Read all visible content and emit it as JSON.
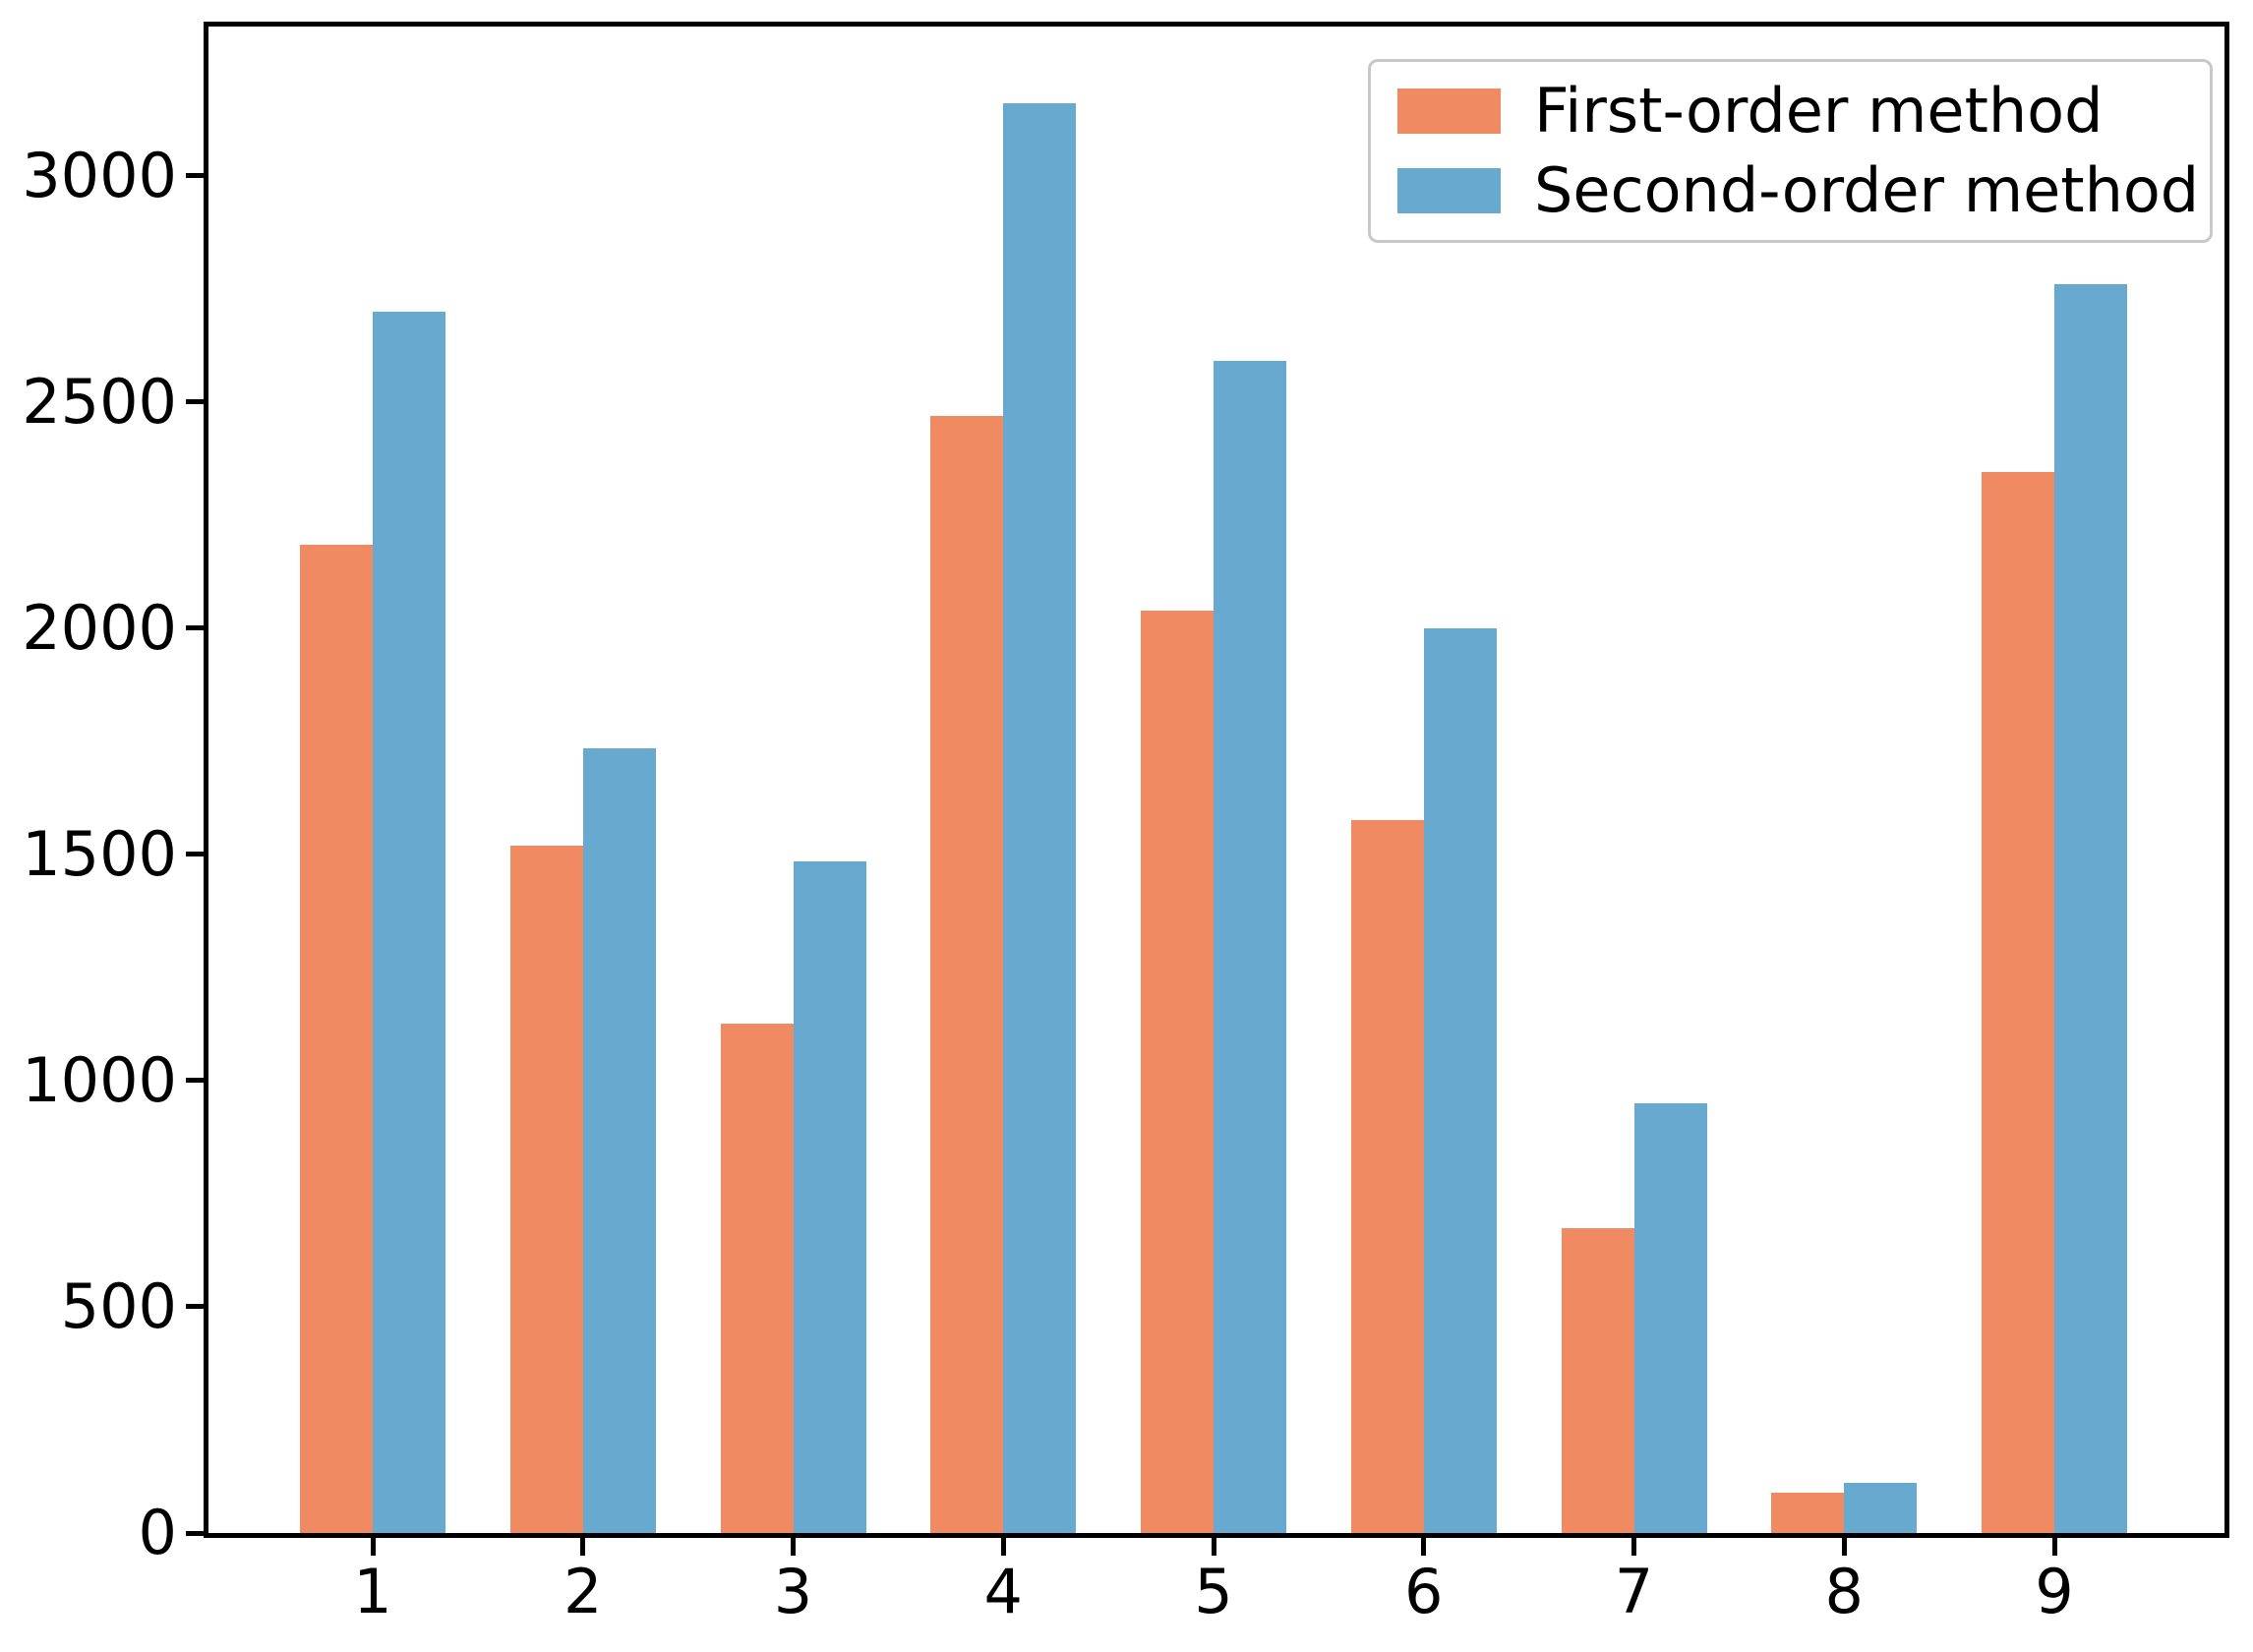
{
  "chart_data": {
    "type": "bar",
    "title": "",
    "xlabel": "",
    "ylabel": "",
    "categories": [
      "1",
      "2",
      "3",
      "4",
      "5",
      "6",
      "7",
      "8",
      "9"
    ],
    "series": [
      {
        "name": "First-order method",
        "color": "#ef8a62",
        "values": [
          2185,
          1520,
          1125,
          2470,
          2040,
          1575,
          675,
          90,
          2345
        ]
      },
      {
        "name": "Second-order method",
        "color": "#67a9cf",
        "values": [
          2700,
          1735,
          1485,
          3160,
          2590,
          2000,
          950,
          110,
          2760
        ]
      }
    ],
    "ylim": [
      0,
      3330
    ],
    "yticks": [
      0,
      500,
      1000,
      1500,
      2000,
      2500,
      3000
    ],
    "grid": false,
    "legend_position": "upper right",
    "colors": {
      "axis": "#000000",
      "tick_label": "#000000",
      "legend_border": "#c8c8c8",
      "background": "#ffffff"
    }
  },
  "legend": {
    "items": [
      {
        "label": "First-order method",
        "color": "#ef8a62"
      },
      {
        "label": "Second-order method",
        "color": "#67a9cf"
      }
    ]
  }
}
